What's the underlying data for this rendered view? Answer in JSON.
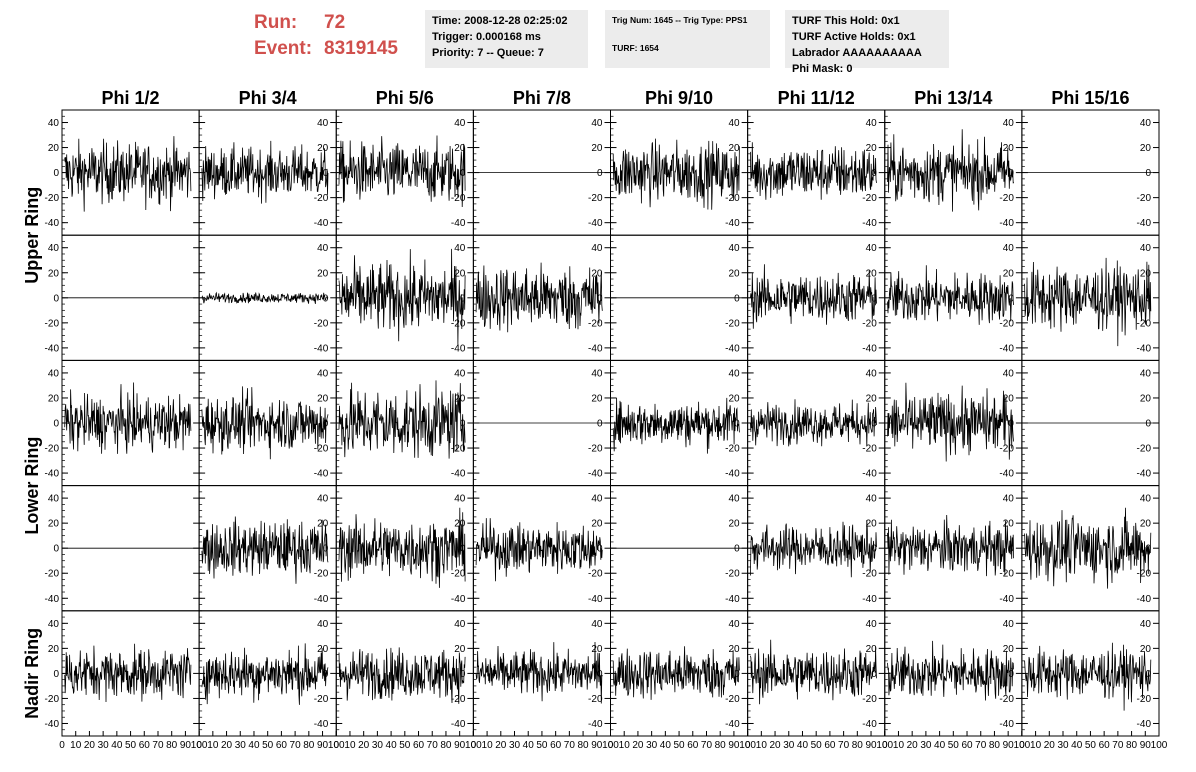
{
  "header": {
    "run_label": "Run:",
    "run_value": "72",
    "event_label": "Event:",
    "event_value": "8319145"
  },
  "info": {
    "time": "Time: 2008-12-28 02:25:02",
    "trigger": "Trigger: 0.000168 ms",
    "priority": "Priority: 7 -- Queue: 7",
    "trig_num": "Trig Num: 1645 -- Trig Type: PPS1",
    "turf": "TURF: 1654",
    "turf_hold": "TURF This Hold: 0x1",
    "turf_active": "TURF Active Holds: 0x1",
    "labrador": "Labrador AAAAAAAAAA",
    "phi_mask": "Phi Mask: 0"
  },
  "chart_data": {
    "type": "line",
    "columns": [
      "Phi 1/2",
      "Phi 3/4",
      "Phi 5/6",
      "Phi 7/8",
      "Phi 9/10",
      "Phi 11/12",
      "Phi 13/14",
      "Phi 15/16"
    ],
    "rows": [
      "Upper Ring",
      "Upper Ring",
      "Lower Ring",
      "Lower Ring",
      "Nadir Ring"
    ],
    "ring_labels": [
      "Upper Ring",
      "Lower Ring",
      "Nadir Ring"
    ],
    "xlim": [
      0,
      100
    ],
    "ylim": [
      -50,
      50
    ],
    "x_ticks": [
      "0",
      "10",
      "20",
      "30",
      "40",
      "50",
      "60",
      "70",
      "80",
      "90",
      "100"
    ],
    "y_ticks": [
      "-40",
      "-20",
      "0",
      "20",
      "40"
    ],
    "grid": false,
    "legend": "none",
    "amplitude": [
      [
        12,
        10,
        12,
        0,
        12,
        11,
        12,
        0
      ],
      [
        0,
        2,
        14,
        13,
        0,
        10,
        10,
        13
      ],
      [
        11,
        11,
        14,
        0,
        9,
        8,
        12,
        0
      ],
      [
        0,
        11,
        12,
        10,
        0,
        9,
        10,
        13
      ],
      [
        10,
        10,
        10,
        9,
        10,
        10,
        10,
        10
      ]
    ],
    "line_color": "#000000",
    "header_color": "#d0504d"
  }
}
